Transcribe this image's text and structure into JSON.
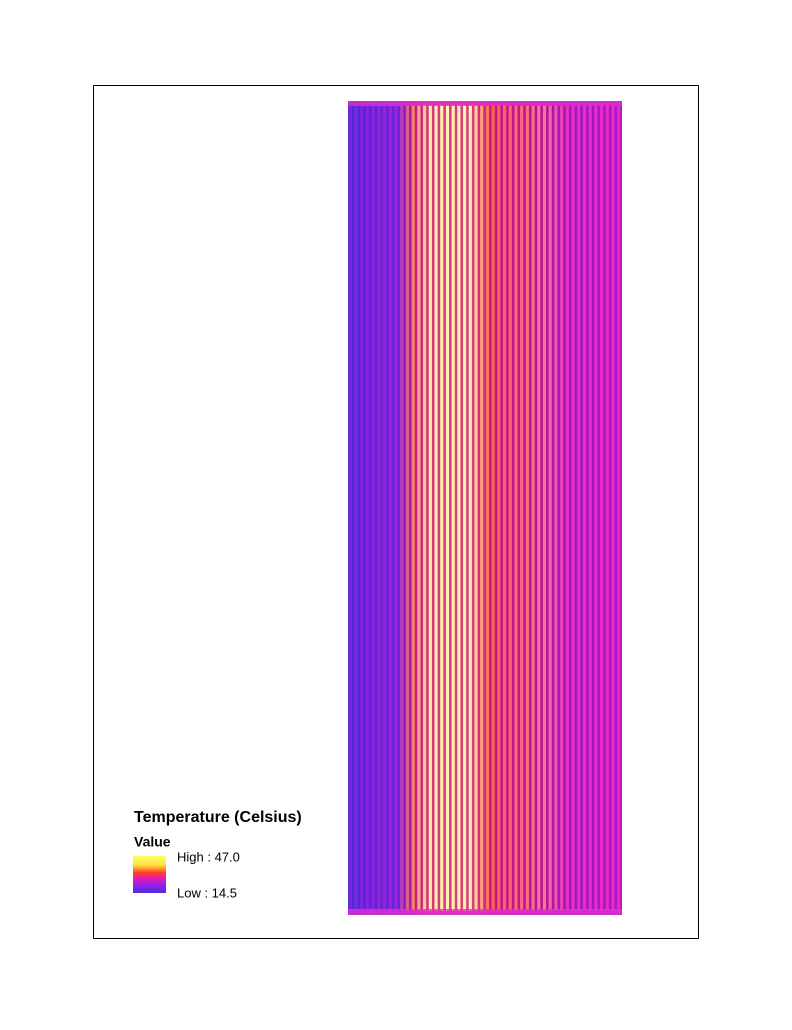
{
  "legend": {
    "title": "Temperature (Celsius)",
    "field": "Value",
    "items": [
      {
        "label": "High : 47.0"
      },
      {
        "label": "Low : 14.5"
      }
    ]
  }
}
